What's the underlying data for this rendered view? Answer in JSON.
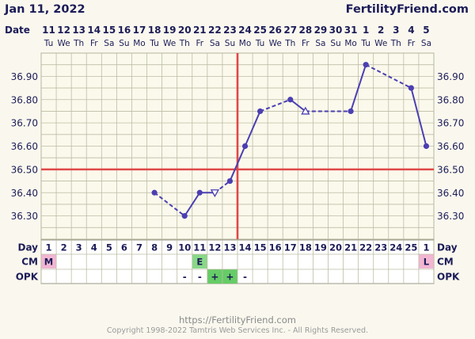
{
  "header": {
    "date_title": "Jan 11, 2022",
    "site_name": "FertilityFriend.com",
    "date_label": "Date"
  },
  "footer": {
    "url": "https://FertilityFriend.com",
    "copyright": "Copyright 1998-2022 Tamtris Web Services Inc. - All Rights Reserved."
  },
  "colors": {
    "background": "#faf8ee",
    "plot_bg": "#fbf9ec",
    "grid": "#bdbda5",
    "temp_line": "#4b3fb2",
    "coverline": "#e04848",
    "ovulation_line": "#e04848",
    "label_text": "#1c1c58",
    "cm_pink": "#f2b6d2",
    "cm_green": "#88d888",
    "opk_green": "#66cc66"
  },
  "chart_data": {
    "type": "line",
    "x": {
      "dates": [
        "11",
        "12",
        "13",
        "14",
        "15",
        "16",
        "17",
        "18",
        "19",
        "20",
        "21",
        "22",
        "23",
        "24",
        "25",
        "26",
        "27",
        "28",
        "29",
        "30",
        "31",
        "1",
        "2",
        "3",
        "4",
        "5"
      ],
      "weekdays": [
        "Tu",
        "We",
        "Th",
        "Fr",
        "Sa",
        "Su",
        "Mo",
        "Tu",
        "We",
        "Th",
        "Fr",
        "Sa",
        "Su",
        "Mo",
        "Tu",
        "We",
        "Th",
        "Fr",
        "Sa",
        "Su",
        "Mo",
        "Tu",
        "We",
        "Th",
        "Fr",
        "Sa"
      ],
      "cycle_days": [
        "1",
        "2",
        "3",
        "4",
        "5",
        "6",
        "7",
        "8",
        "9",
        "10",
        "11",
        "12",
        "13",
        "14",
        "15",
        "16",
        "17",
        "18",
        "19",
        "20",
        "21",
        "22",
        "23",
        "24",
        "25",
        "1"
      ]
    },
    "ylim": [
      36.2,
      37.0
    ],
    "y_ticks": [
      "36.90",
      "36.80",
      "36.70",
      "36.60",
      "36.50",
      "36.40",
      "36.30"
    ],
    "y_tick_values": [
      36.9,
      36.8,
      36.7,
      36.6,
      36.5,
      36.4,
      36.3
    ],
    "temps": [
      null,
      null,
      null,
      null,
      null,
      null,
      null,
      36.4,
      null,
      36.3,
      36.4,
      36.4,
      36.45,
      36.6,
      36.75,
      null,
      36.8,
      36.75,
      null,
      null,
      36.75,
      36.95,
      null,
      null,
      36.85,
      36.6
    ],
    "marker_types": [
      null,
      null,
      null,
      null,
      null,
      null,
      null,
      "circle",
      null,
      "circle",
      "circle",
      "triangle-down",
      "circle",
      "circle",
      "circle",
      null,
      "circle",
      "triangle-up",
      null,
      null,
      "circle",
      "circle",
      null,
      null,
      "circle",
      "circle"
    ],
    "segments": [
      {
        "from": 7,
        "to": 9,
        "style": "dashed"
      },
      {
        "from": 9,
        "to": 10,
        "style": "solid"
      },
      {
        "from": 10,
        "to": 11,
        "style": "solid"
      },
      {
        "from": 11,
        "to": 12,
        "style": "dashed"
      },
      {
        "from": 12,
        "to": 13,
        "style": "solid"
      },
      {
        "from": 13,
        "to": 14,
        "style": "solid"
      },
      {
        "from": 14,
        "to": 16,
        "style": "dashed"
      },
      {
        "from": 16,
        "to": 17,
        "style": "solid"
      },
      {
        "from": 17,
        "to": 20,
        "style": "dashed"
      },
      {
        "from": 20,
        "to": 21,
        "style": "solid"
      },
      {
        "from": 21,
        "to": 24,
        "style": "dashed"
      },
      {
        "from": 24,
        "to": 25,
        "style": "solid"
      }
    ],
    "coverline": 36.5,
    "ovulation_index": 12,
    "grid": true,
    "rows": {
      "day_label": "Day",
      "cm_label": "CM",
      "opk_label": "OPK",
      "cm": [
        {
          "index": 0,
          "text": "M",
          "color": "#f2b6d2"
        },
        {
          "index": 10,
          "text": "E",
          "color": "#88d888"
        },
        {
          "index": 25,
          "text": "L",
          "color": "#f2b6d2"
        }
      ],
      "opk": [
        {
          "index": 9,
          "text": "-",
          "color": null
        },
        {
          "index": 10,
          "text": "-",
          "color": null
        },
        {
          "index": 11,
          "text": "+",
          "color": "#66cc66"
        },
        {
          "index": 12,
          "text": "+",
          "color": "#66cc66"
        },
        {
          "index": 13,
          "text": "-",
          "color": null
        }
      ]
    }
  }
}
